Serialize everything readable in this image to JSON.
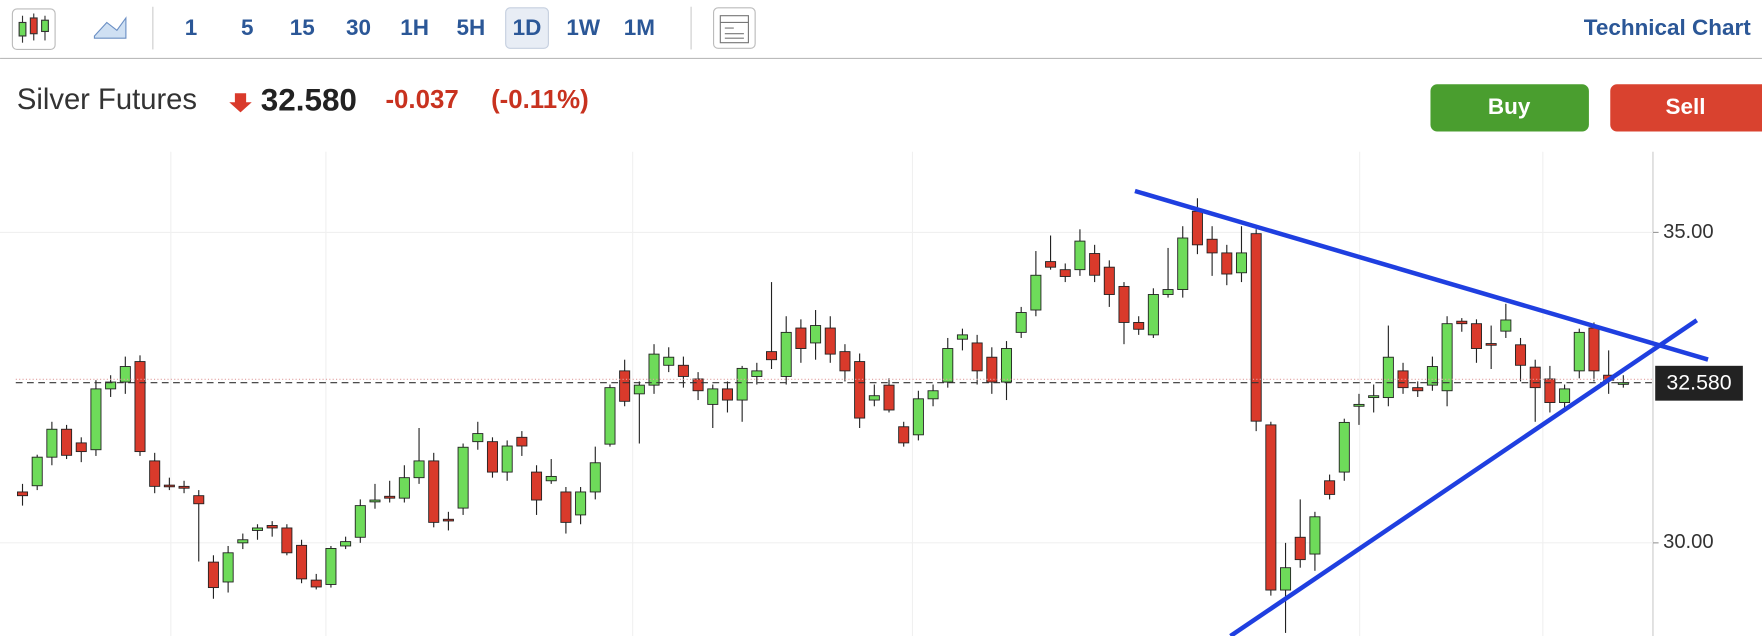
{
  "toolbar": {
    "timeframes": [
      "1",
      "5",
      "15",
      "30",
      "1H",
      "5H",
      "1D",
      "1W",
      "1M"
    ],
    "active": 6,
    "title": "Technical Chart"
  },
  "header": {
    "name": "Silver Futures",
    "change": "-0.037",
    "change_pct": "(-0.11%)",
    "buy": "Buy",
    "sell": "Sell"
  },
  "chart_data": {
    "type": "candlestick",
    "ohlc": [
      [
        30.82,
        30.95,
        30.6,
        30.76
      ],
      [
        30.92,
        31.42,
        30.85,
        31.38
      ],
      [
        31.38,
        31.95,
        31.25,
        31.83
      ],
      [
        31.83,
        31.9,
        31.35,
        31.41
      ],
      [
        31.61,
        31.7,
        31.3,
        31.47
      ],
      [
        31.5,
        32.62,
        31.4,
        32.48
      ],
      [
        32.48,
        32.7,
        32.35,
        32.59
      ],
      [
        32.59,
        33.0,
        32.4,
        32.84
      ],
      [
        32.92,
        33.02,
        31.4,
        31.47
      ],
      [
        31.32,
        31.45,
        30.8,
        30.91
      ],
      [
        30.93,
        31.05,
        30.85,
        30.91
      ],
      [
        30.91,
        31.0,
        30.8,
        30.88
      ],
      [
        30.76,
        30.85,
        29.7,
        30.63
      ],
      [
        29.69,
        29.8,
        29.1,
        29.28
      ],
      [
        29.37,
        29.95,
        29.2,
        29.84
      ],
      [
        30.0,
        30.15,
        29.9,
        30.05
      ],
      [
        30.2,
        30.3,
        30.05,
        30.24
      ],
      [
        30.28,
        30.35,
        30.1,
        30.24
      ],
      [
        30.24,
        30.3,
        29.8,
        29.84
      ],
      [
        29.96,
        30.05,
        29.35,
        29.42
      ],
      [
        29.4,
        29.5,
        29.25,
        29.29
      ],
      [
        29.33,
        29.95,
        29.28,
        29.91
      ],
      [
        29.95,
        30.1,
        29.9,
        30.02
      ],
      [
        30.09,
        30.7,
        30.0,
        30.6
      ],
      [
        30.66,
        30.95,
        30.55,
        30.69
      ],
      [
        30.75,
        31.0,
        30.65,
        30.72
      ],
      [
        30.72,
        31.25,
        30.65,
        31.05
      ],
      [
        31.05,
        31.85,
        30.95,
        31.32
      ],
      [
        31.32,
        31.45,
        30.25,
        30.33
      ],
      [
        30.38,
        30.5,
        30.2,
        30.36
      ],
      [
        30.56,
        31.6,
        30.45,
        31.54
      ],
      [
        31.63,
        31.95,
        31.5,
        31.76
      ],
      [
        31.63,
        31.7,
        31.05,
        31.14
      ],
      [
        31.14,
        31.65,
        31.0,
        31.56
      ],
      [
        31.7,
        31.8,
        31.4,
        31.56
      ],
      [
        31.14,
        31.25,
        30.45,
        30.69
      ],
      [
        31.0,
        31.35,
        30.95,
        31.07
      ],
      [
        30.82,
        30.9,
        30.15,
        30.33
      ],
      [
        30.45,
        30.9,
        30.3,
        30.82
      ],
      [
        30.82,
        31.55,
        30.7,
        31.29
      ],
      [
        31.59,
        32.55,
        31.55,
        32.5
      ],
      [
        32.77,
        32.95,
        32.2,
        32.28
      ],
      [
        32.4,
        32.6,
        31.6,
        32.54
      ],
      [
        32.54,
        33.2,
        32.4,
        33.04
      ],
      [
        32.86,
        33.15,
        32.75,
        32.99
      ],
      [
        32.86,
        33.0,
        32.5,
        32.68
      ],
      [
        32.64,
        32.75,
        32.3,
        32.45
      ],
      [
        32.23,
        32.55,
        31.85,
        32.48
      ],
      [
        32.48,
        32.6,
        32.1,
        32.3
      ],
      [
        32.3,
        32.85,
        31.95,
        32.81
      ],
      [
        32.68,
        32.9,
        32.55,
        32.77
      ],
      [
        33.08,
        34.2,
        32.8,
        32.95
      ],
      [
        32.68,
        33.65,
        32.55,
        33.39
      ],
      [
        33.46,
        33.6,
        32.9,
        33.13
      ],
      [
        33.22,
        33.75,
        32.95,
        33.5
      ],
      [
        33.46,
        33.65,
        32.9,
        33.04
      ],
      [
        33.08,
        33.2,
        32.6,
        32.77
      ],
      [
        32.92,
        33.05,
        31.85,
        32.01
      ],
      [
        32.3,
        32.55,
        32.2,
        32.37
      ],
      [
        32.54,
        32.65,
        32.1,
        32.14
      ],
      [
        31.87,
        31.95,
        31.55,
        31.61
      ],
      [
        31.74,
        32.45,
        31.65,
        32.32
      ],
      [
        32.32,
        32.55,
        32.2,
        32.45
      ],
      [
        32.59,
        33.3,
        32.5,
        33.13
      ],
      [
        33.28,
        33.45,
        33.1,
        33.35
      ],
      [
        33.22,
        33.35,
        32.55,
        32.77
      ],
      [
        32.99,
        33.15,
        32.4,
        32.59
      ],
      [
        32.59,
        33.25,
        32.3,
        33.13
      ],
      [
        33.39,
        33.8,
        33.3,
        33.71
      ],
      [
        33.75,
        34.7,
        33.65,
        34.31
      ],
      [
        34.53,
        34.95,
        34.4,
        34.44
      ],
      [
        34.4,
        34.5,
        34.2,
        34.29
      ],
      [
        34.4,
        35.05,
        34.3,
        34.86
      ],
      [
        34.66,
        34.8,
        34.2,
        34.31
      ],
      [
        34.44,
        34.55,
        33.8,
        34.0
      ],
      [
        34.13,
        34.2,
        33.2,
        33.55
      ],
      [
        33.55,
        33.65,
        33.35,
        33.44
      ],
      [
        33.35,
        34.1,
        33.3,
        34.0
      ],
      [
        34.0,
        34.75,
        33.95,
        34.08
      ],
      [
        34.08,
        35.1,
        33.95,
        34.91
      ],
      [
        35.34,
        35.55,
        34.65,
        34.8
      ],
      [
        34.89,
        35.1,
        34.3,
        34.67
      ],
      [
        34.67,
        34.8,
        34.15,
        34.33
      ],
      [
        34.35,
        35.1,
        34.2,
        34.67
      ],
      [
        34.98,
        35.05,
        31.8,
        31.96
      ],
      [
        31.9,
        31.95,
        29.15,
        29.24
      ],
      [
        29.24,
        30.0,
        28.55,
        29.6
      ],
      [
        30.09,
        30.7,
        29.6,
        29.73
      ],
      [
        29.82,
        30.5,
        29.55,
        30.42
      ],
      [
        31.0,
        31.1,
        30.7,
        30.78
      ],
      [
        31.14,
        32.0,
        31.0,
        31.94
      ],
      [
        32.2,
        32.4,
        31.9,
        32.23
      ],
      [
        32.34,
        32.55,
        32.1,
        32.37
      ],
      [
        32.34,
        33.5,
        32.2,
        32.99
      ],
      [
        32.77,
        32.9,
        32.4,
        32.5
      ],
      [
        32.5,
        32.6,
        32.35,
        32.45
      ],
      [
        32.54,
        33.0,
        32.45,
        32.84
      ],
      [
        32.45,
        33.65,
        32.2,
        33.53
      ],
      [
        33.57,
        33.62,
        33.4,
        33.53
      ],
      [
        33.53,
        33.6,
        32.9,
        33.13
      ],
      [
        33.21,
        33.5,
        32.8,
        33.19
      ],
      [
        33.41,
        33.85,
        33.3,
        33.59
      ],
      [
        33.19,
        33.3,
        32.6,
        32.86
      ],
      [
        32.83,
        32.95,
        31.95,
        32.5
      ],
      [
        32.64,
        32.85,
        32.1,
        32.26
      ],
      [
        32.26,
        32.55,
        32.15,
        32.48
      ],
      [
        32.77,
        33.45,
        32.65,
        33.39
      ],
      [
        33.46,
        33.55,
        32.6,
        32.77
      ],
      [
        32.7,
        33.1,
        32.4,
        32.62
      ],
      [
        32.58,
        32.7,
        32.5,
        32.58
      ]
    ],
    "ylim": [
      28.5,
      36.3
    ],
    "yticks": [
      {
        "value": 35,
        "label": "35.00"
      },
      {
        "value": 30,
        "label": "30.00"
      }
    ],
    "last_price": {
      "value": 32.58,
      "label": "32.580"
    },
    "up_color": "#6edb5a",
    "down_color": "#d93a2b",
    "grid": true
  }
}
